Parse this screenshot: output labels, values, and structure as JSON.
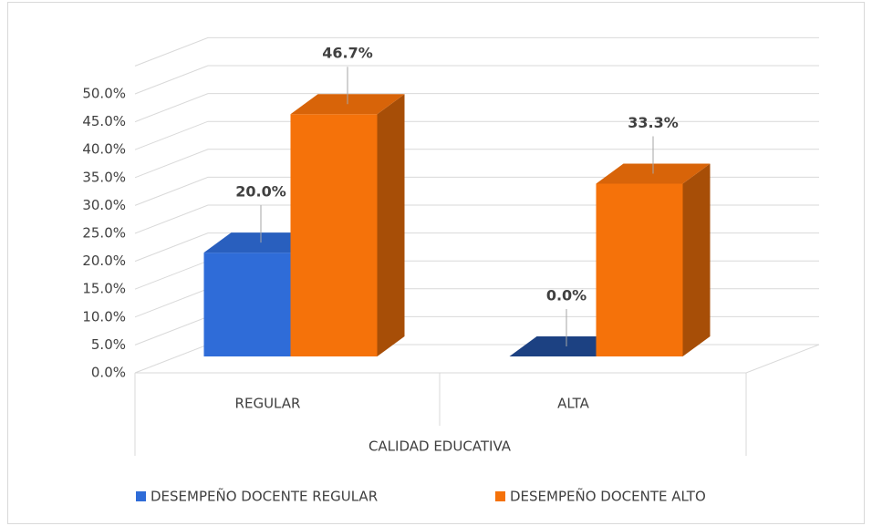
{
  "chart_data": {
    "type": "bar3d",
    "categories": [
      "REGULAR",
      "ALTA"
    ],
    "x_label": "CALIDAD EDUCATIVA",
    "series": [
      {
        "name": "DESEMPEÑO DOCENTE REGULAR",
        "color": "#2f6cd8",
        "values": [
          20.0,
          0.0
        ],
        "value_labels": [
          "20.0%",
          "0.0%"
        ]
      },
      {
        "name": "DESEMPEÑO DOCENTE ALTO",
        "color": "#f5720a",
        "values": [
          46.7,
          33.3
        ],
        "value_labels": [
          "46.7%",
          "33.3%"
        ]
      }
    ],
    "ylim": [
      0,
      55
    ],
    "yticks": [
      {
        "value": 0,
        "label": "0.0%"
      },
      {
        "value": 5,
        "label": "5.0%"
      },
      {
        "value": 10,
        "label": "10.0%"
      },
      {
        "value": 15,
        "label": "15.0%"
      },
      {
        "value": 20,
        "label": "20.0%"
      },
      {
        "value": 25,
        "label": "25.0%"
      },
      {
        "value": 30,
        "label": "30.0%"
      },
      {
        "value": 35,
        "label": "35.0%"
      },
      {
        "value": 40,
        "label": "40.0%"
      },
      {
        "value": 45,
        "label": "45.0%"
      },
      {
        "value": 50,
        "label": "50.0%"
      }
    ],
    "grid": true,
    "legend": "bottom"
  }
}
